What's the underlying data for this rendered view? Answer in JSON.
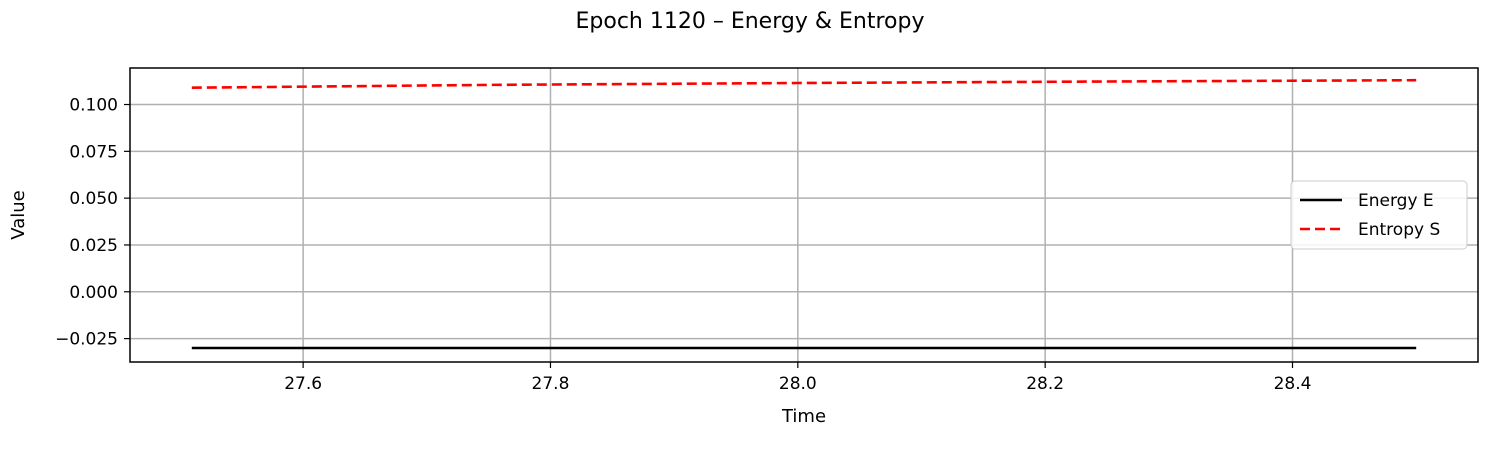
{
  "chart_data": {
    "type": "line",
    "title": "Epoch 1120 – Energy & Entropy",
    "xlabel": "Time",
    "ylabel": "Value",
    "xlim": [
      27.46,
      28.55
    ],
    "ylim": [
      -0.0375,
      0.1195
    ],
    "xticks": [
      27.6,
      27.8,
      28.0,
      28.2,
      28.4
    ],
    "xtick_labels": [
      "27.6",
      "27.8",
      "28.0",
      "28.2",
      "28.4"
    ],
    "yticks": [
      -0.025,
      0.0,
      0.025,
      0.05,
      0.075,
      0.1
    ],
    "ytick_labels": [
      "−0.025",
      "0.000",
      "0.025",
      "0.050",
      "0.075",
      "0.100"
    ],
    "grid": true,
    "legend_position": "center-right",
    "series": [
      {
        "name": "Energy E",
        "color": "#000000",
        "style": "solid",
        "x": [
          27.51,
          28.5
        ],
        "y": [
          -0.03,
          -0.03
        ]
      },
      {
        "name": "Entropy S",
        "color": "#ff0000",
        "style": "dashed",
        "x": [
          27.51,
          27.75,
          28.0,
          28.25,
          28.5
        ],
        "y": [
          0.109,
          0.1105,
          0.1115,
          0.1123,
          0.113
        ]
      }
    ]
  }
}
